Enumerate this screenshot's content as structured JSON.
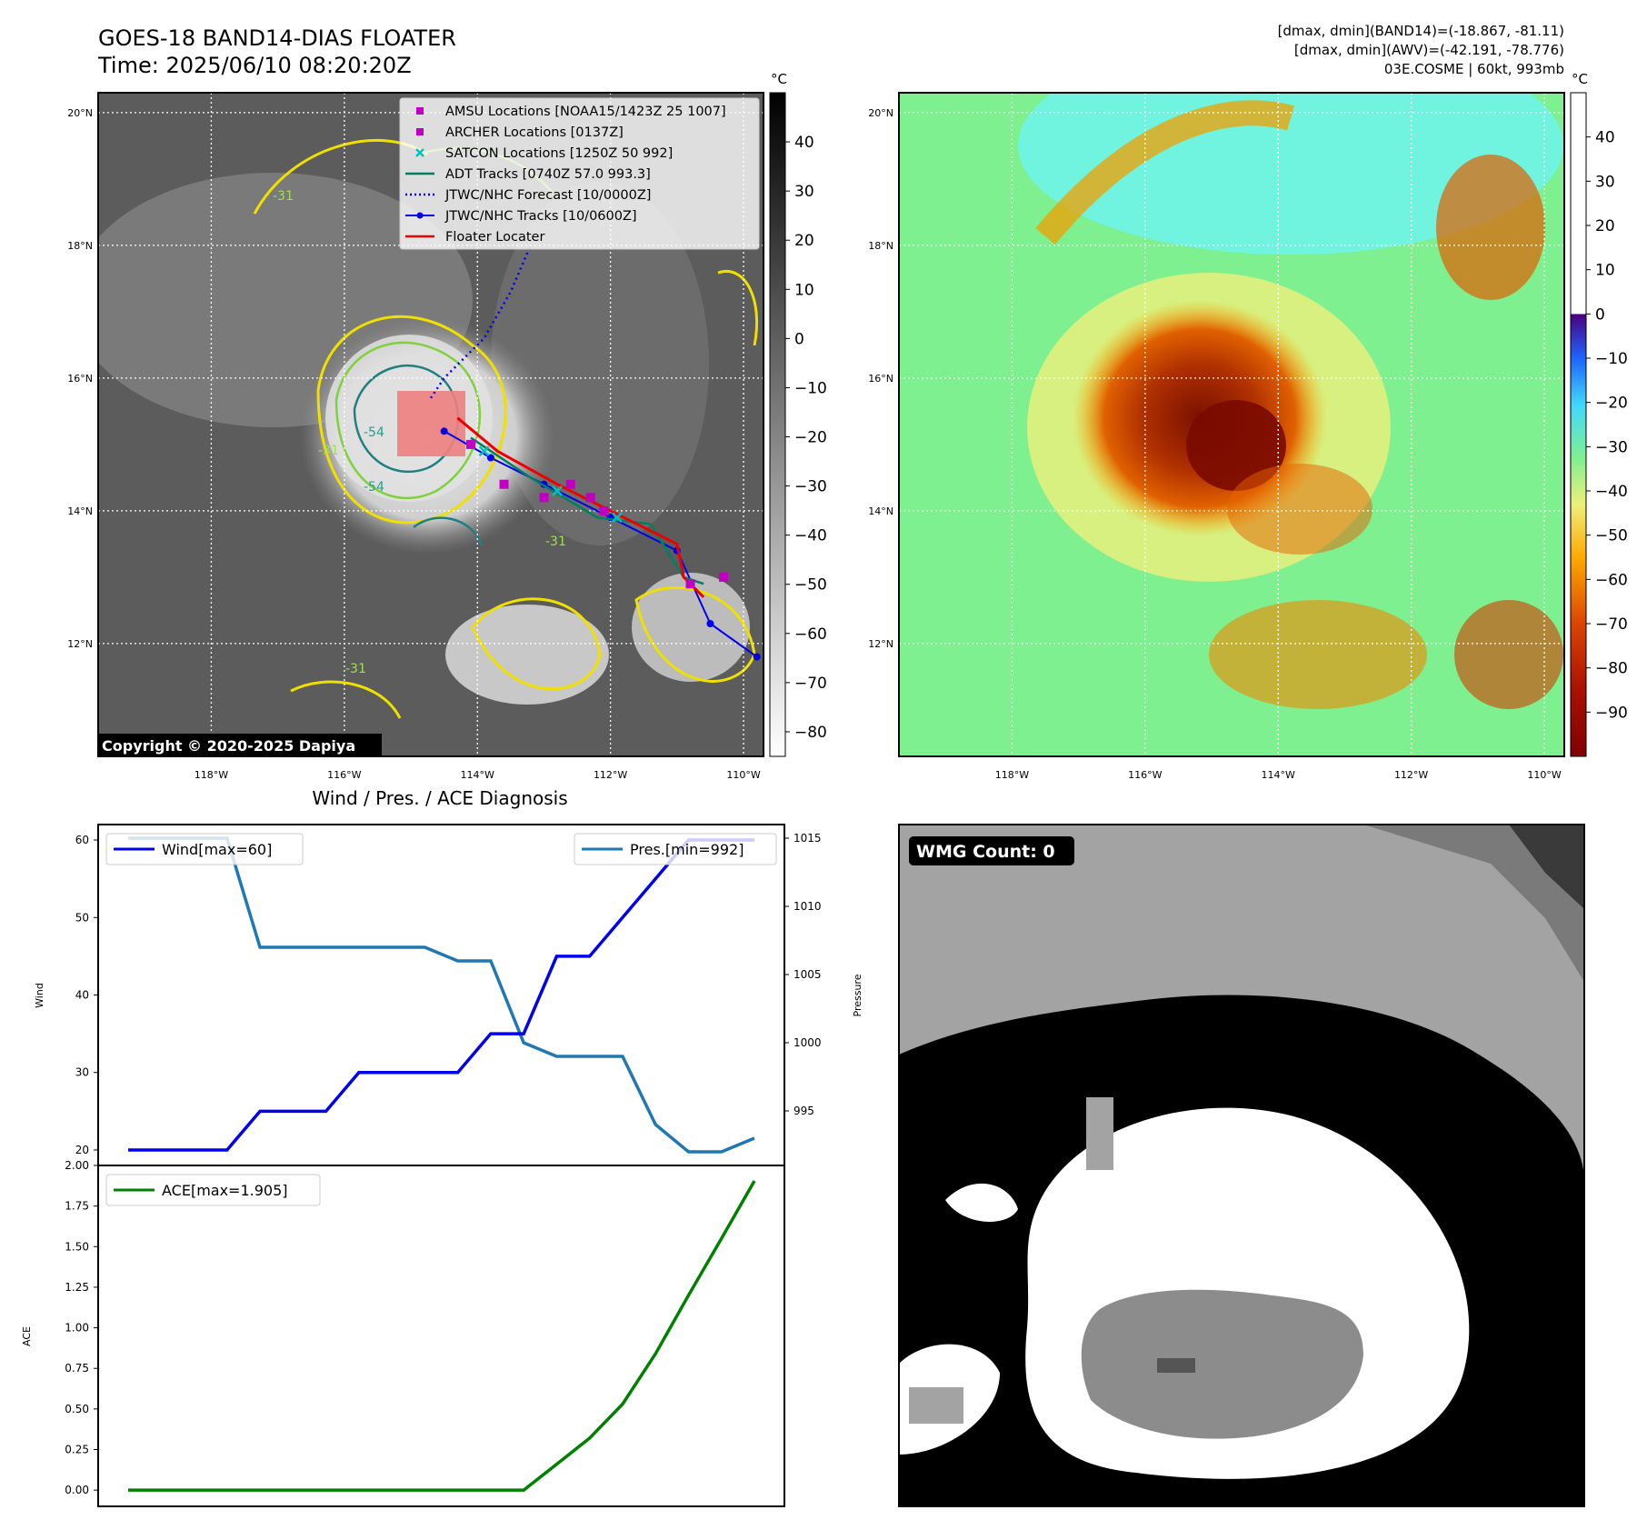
{
  "header": {
    "title_line1": "GOES-18 BAND14-DIAS FLOATER",
    "title_line2": "Time: 2025/06/10 08:20:20Z",
    "info_line1": "[dmax, dmin](BAND14)=(-18.867, -81.11)",
    "info_line2": "[dmax, dmin](AWV)=(-42.191, -78.776)",
    "info_line3": "03E.COSME | 60kt, 993mb"
  },
  "colors": {
    "wind": "#0000ee",
    "pressure": "#1f77b4",
    "ace": "#008000",
    "amsu": "#c000c0",
    "archer": "#c000c0",
    "satcon": "#00c0c0",
    "adt": "#008060",
    "jtwc_forecast": "#0000ee",
    "jtwc_track": "#0000ee",
    "floater": "#ee0000"
  },
  "map": {
    "lon_ticks": [
      "118°W",
      "116°W",
      "114°W",
      "112°W",
      "110°W"
    ],
    "lat_ticks": [
      "20°N",
      "18°N",
      "16°N",
      "14°N",
      "12°N"
    ],
    "lon_range": [
      -119.7,
      -109.7
    ],
    "lat_range": [
      10.3,
      20.3
    ],
    "copyright": "Copyright © 2020-2025 Dapiya",
    "legend": [
      {
        "label": "AMSU Locations [NOAA15/1423Z 25 1007]",
        "marker": "square",
        "color": "#c000c0"
      },
      {
        "label": "ARCHER Locations [0137Z]",
        "marker": "square",
        "color": "#c000c0"
      },
      {
        "label": "SATCON Locations [1250Z 50 992]",
        "marker": "x",
        "color": "#00c0c0"
      },
      {
        "label": "ADT Tracks [0740Z 57.0 993.3]",
        "marker": "line",
        "color": "#008060"
      },
      {
        "label": "JTWC/NHC Forecast [10/0000Z]",
        "marker": "dotted",
        "color": "#0000ee"
      },
      {
        "label": "JTWC/NHC Tracks [10/0600Z]",
        "marker": "dotline",
        "color": "#0000ee"
      },
      {
        "label": "Floater Locater",
        "marker": "line",
        "color": "#ee0000"
      }
    ],
    "contour_labels": [
      "-31",
      "-31",
      "-54",
      "-54",
      "-31",
      "-31"
    ],
    "ir_cbar": {
      "unit": "°C",
      "ticks": [
        "40",
        "30",
        "20",
        "10",
        "0",
        "−10",
        "−20",
        "−30",
        "−40",
        "−50",
        "−60",
        "−70",
        "−80"
      ],
      "range": [
        -85,
        50
      ]
    },
    "awv_cbar": {
      "unit": "°C",
      "ticks": [
        "40",
        "30",
        "20",
        "10",
        "0",
        "−10",
        "−20",
        "−30",
        "−40",
        "−50",
        "−60",
        "−70",
        "−80",
        "−90"
      ],
      "range": [
        -100,
        50
      ]
    }
  },
  "chart_data": [
    {
      "type": "line",
      "title": "Wind / Pres. / ACE Diagnosis",
      "x": [
        0,
        1,
        2,
        3,
        4,
        5,
        6,
        7,
        8,
        9,
        10,
        11,
        12,
        13,
        14,
        15,
        16,
        17,
        18,
        19
      ],
      "series": [
        {
          "name": "Wind[max=60]",
          "axis": "left",
          "values": [
            20,
            20,
            20,
            20,
            25,
            25,
            25,
            30,
            30,
            30,
            30,
            35,
            35,
            45,
            45,
            50,
            55,
            60,
            60,
            60
          ]
        },
        {
          "name": "Pres.[min=992]",
          "axis": "right",
          "values": [
            1015,
            1015,
            1015,
            1015,
            1007,
            1007,
            1007,
            1007,
            1007,
            1007,
            1006,
            1006,
            1000,
            999,
            999,
            999,
            994,
            992,
            992,
            993
          ]
        }
      ],
      "ylabel_left": "Wind",
      "ylabel_right": "Pressure",
      "left_ticks": [
        "20",
        "30",
        "40",
        "50",
        "60"
      ],
      "right_ticks": [
        "995",
        "1000",
        "1005",
        "1010",
        "1015"
      ],
      "ylim_left": [
        18,
        62
      ],
      "ylim_right": [
        991,
        1016
      ]
    },
    {
      "type": "line",
      "x": [
        0,
        1,
        2,
        3,
        4,
        5,
        6,
        7,
        8,
        9,
        10,
        11,
        12,
        13,
        14,
        15,
        16,
        17,
        18,
        19
      ],
      "series": [
        {
          "name": "ACE[max=1.905]",
          "values": [
            0,
            0,
            0,
            0,
            0,
            0,
            0,
            0,
            0,
            0,
            0,
            0,
            0,
            0.16,
            0.32,
            0.53,
            0.84,
            1.2,
            1.55,
            1.905
          ]
        }
      ],
      "ylabel": "ACE",
      "ticks": [
        "0.00",
        "0.25",
        "0.50",
        "0.75",
        "1.00",
        "1.25",
        "1.50",
        "1.75",
        "2.00"
      ],
      "ylim": [
        -0.1,
        2.0
      ]
    }
  ],
  "wmg": {
    "label": "WMG Count: 0"
  }
}
